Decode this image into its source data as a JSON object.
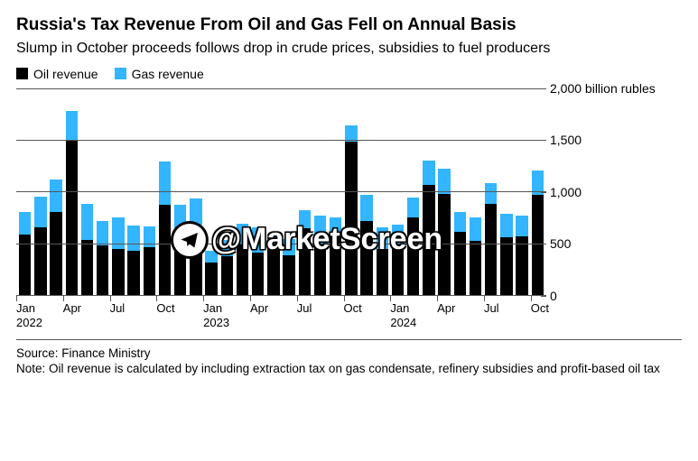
{
  "title": "Russia's Tax Revenue From Oil and Gas Fell on Annual Basis",
  "subtitle": "Slump in October proceeds follows drop in crude prices, subsidies to fuel producers",
  "legend": {
    "series": [
      {
        "label": "Oil revenue",
        "color": "#000000"
      },
      {
        "label": "Gas revenue",
        "color": "#33b5ff"
      }
    ]
  },
  "chart": {
    "type": "stacked-bar",
    "y_unit_label": "billion rubles",
    "ylim": [
      0,
      2000
    ],
    "yticks": [
      0,
      500,
      1000,
      1500,
      2000
    ],
    "ytick_labels": [
      "0",
      "500",
      "1,000",
      "1,500",
      "2,000 billion rubles"
    ],
    "gridline_color": "#555555",
    "background_color": "#ffffff",
    "bar_width_ratio": 0.78,
    "series_colors": {
      "oil": "#000000",
      "gas": "#33b5ff"
    },
    "categories": [
      "2022-01",
      "2022-02",
      "2022-03",
      "2022-04",
      "2022-05",
      "2022-06",
      "2022-07",
      "2022-08",
      "2022-09",
      "2022-10",
      "2022-11",
      "2022-12",
      "2023-01",
      "2023-02",
      "2023-03",
      "2023-04",
      "2023-05",
      "2023-06",
      "2023-07",
      "2023-08",
      "2023-09",
      "2023-10",
      "2023-11",
      "2023-12",
      "2024-01",
      "2024-02",
      "2024-03",
      "2024-04",
      "2024-05",
      "2024-06",
      "2024-07",
      "2024-08",
      "2024-09",
      "2024-10"
    ],
    "data": [
      {
        "oil": 580,
        "gas": 220
      },
      {
        "oil": 650,
        "gas": 300
      },
      {
        "oil": 800,
        "gas": 320
      },
      {
        "oil": 1500,
        "gas": 280
      },
      {
        "oil": 530,
        "gas": 350
      },
      {
        "oil": 480,
        "gas": 230
      },
      {
        "oil": 440,
        "gas": 310
      },
      {
        "oil": 430,
        "gas": 240
      },
      {
        "oil": 460,
        "gas": 200
      },
      {
        "oil": 870,
        "gas": 420
      },
      {
        "oil": 560,
        "gas": 310
      },
      {
        "oil": 520,
        "gas": 410
      },
      {
        "oil": 310,
        "gas": 120
      },
      {
        "oil": 370,
        "gas": 160
      },
      {
        "oil": 490,
        "gas": 200
      },
      {
        "oil": 410,
        "gas": 240
      },
      {
        "oil": 440,
        "gas": 130
      },
      {
        "oil": 380,
        "gas": 160
      },
      {
        "oil": 640,
        "gas": 180
      },
      {
        "oil": 480,
        "gas": 290
      },
      {
        "oil": 570,
        "gas": 180
      },
      {
        "oil": 1480,
        "gas": 160
      },
      {
        "oil": 710,
        "gas": 260
      },
      {
        "oil": 440,
        "gas": 210
      },
      {
        "oil": 460,
        "gas": 220
      },
      {
        "oil": 750,
        "gas": 190
      },
      {
        "oil": 1060,
        "gas": 240
      },
      {
        "oil": 980,
        "gas": 240
      },
      {
        "oil": 610,
        "gas": 190
      },
      {
        "oil": 520,
        "gas": 230
      },
      {
        "oil": 880,
        "gas": 200
      },
      {
        "oil": 560,
        "gas": 220
      },
      {
        "oil": 570,
        "gas": 200
      },
      {
        "oil": 970,
        "gas": 230
      }
    ],
    "xticks": [
      {
        "index": 0,
        "label": "Jan",
        "year": "2022"
      },
      {
        "index": 3,
        "label": "Apr",
        "year": ""
      },
      {
        "index": 6,
        "label": "Jul",
        "year": ""
      },
      {
        "index": 9,
        "label": "Oct",
        "year": ""
      },
      {
        "index": 12,
        "label": "Jan",
        "year": "2023"
      },
      {
        "index": 15,
        "label": "Apr",
        "year": ""
      },
      {
        "index": 18,
        "label": "Jul",
        "year": ""
      },
      {
        "index": 21,
        "label": "Oct",
        "year": ""
      },
      {
        "index": 24,
        "label": "Jan",
        "year": "2024"
      },
      {
        "index": 27,
        "label": "Apr",
        "year": ""
      },
      {
        "index": 30,
        "label": "Jul",
        "year": ""
      },
      {
        "index": 33,
        "label": "Oct",
        "year": ""
      }
    ]
  },
  "footer": {
    "source": "Source: Finance Ministry",
    "note": "Note: Oil revenue is calculated by including extraction tax on gas condensate, refinery subsidies and profit-based oil tax"
  },
  "watermark": {
    "text": "@MarketScreen",
    "icon": "telegram-icon"
  }
}
